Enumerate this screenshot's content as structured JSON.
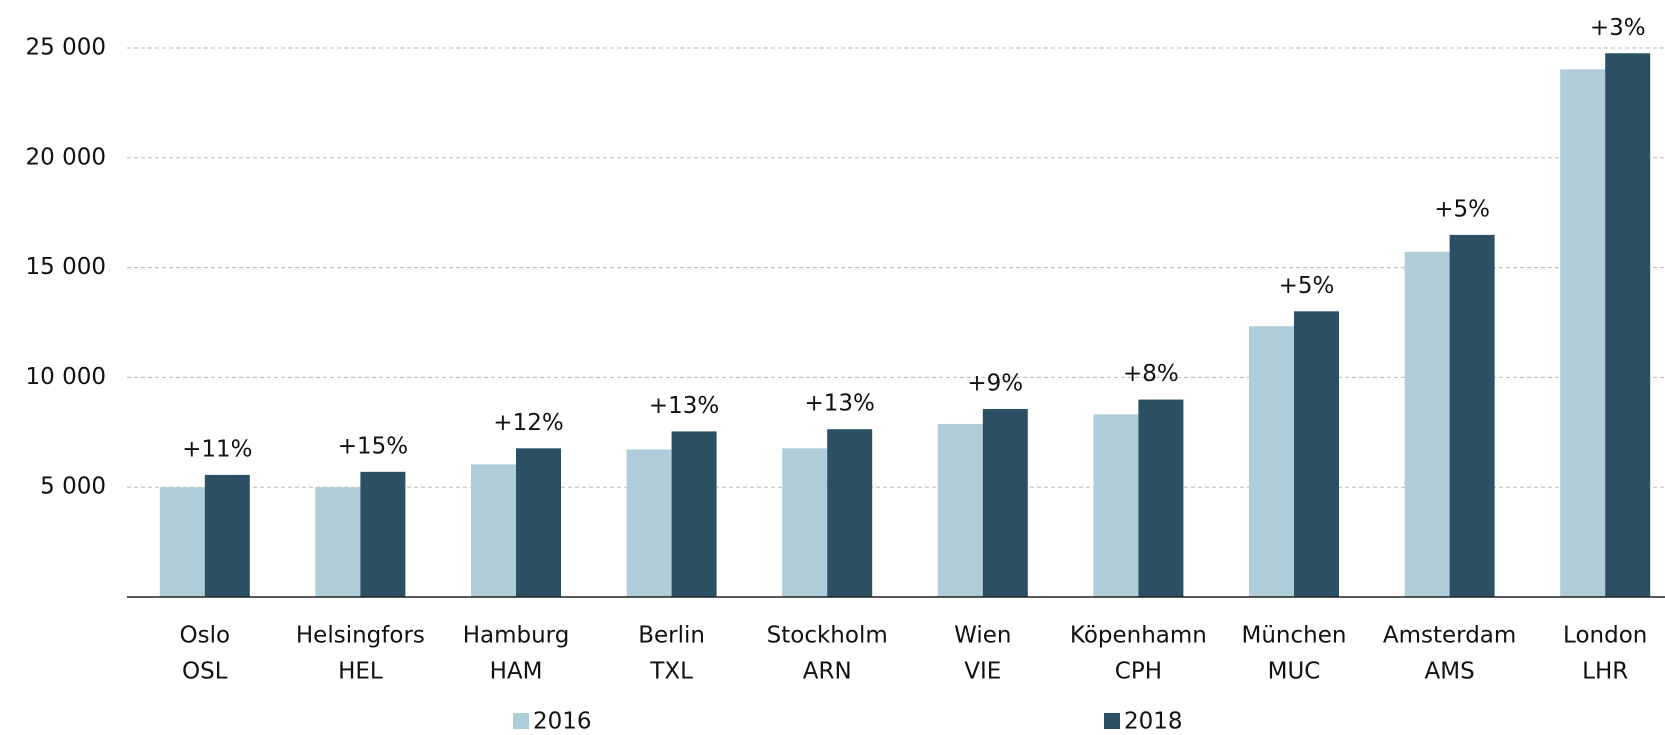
{
  "chart_data": {
    "type": "bar",
    "categories": [
      [
        "Oslo",
        "OSL"
      ],
      [
        "Helsingfors",
        "HEL"
      ],
      [
        "Hamburg",
        "HAM"
      ],
      [
        "Berlin",
        "TXL"
      ],
      [
        "Stockholm",
        "ARN"
      ],
      [
        "Wien",
        "VIE"
      ],
      [
        "Köpenhamn",
        "CPH"
      ],
      [
        "München",
        "MUC"
      ],
      [
        "Amsterdam",
        "AMS"
      ],
      [
        "London",
        "LHR"
      ]
    ],
    "series": [
      {
        "name": "2016",
        "color": "#aecdd8",
        "values": [
          5000,
          5000,
          6040,
          6720,
          6770,
          7880,
          8320,
          12330,
          15720,
          24030
        ]
      },
      {
        "name": "2018",
        "color": "#2b4f63",
        "values": [
          5560,
          5700,
          6770,
          7540,
          7640,
          8560,
          8990,
          13010,
          16490,
          24760
        ],
        "annotations": [
          "+11%",
          "+15%",
          "+12%",
          "+13%",
          "+13%",
          "+9%",
          "+8%",
          "+5%",
          "+5%",
          "+3%"
        ]
      }
    ],
    "ylim": [
      0,
      25000
    ],
    "yticks": [
      {
        "value": 5000,
        "label": "5 000"
      },
      {
        "value": 10000,
        "label": "10 000"
      },
      {
        "value": 15000,
        "label": "15 000"
      },
      {
        "value": 20000,
        "label": "20 000"
      },
      {
        "value": 25000,
        "label": "25 000"
      }
    ],
    "grid": true,
    "legend": "bottom"
  }
}
